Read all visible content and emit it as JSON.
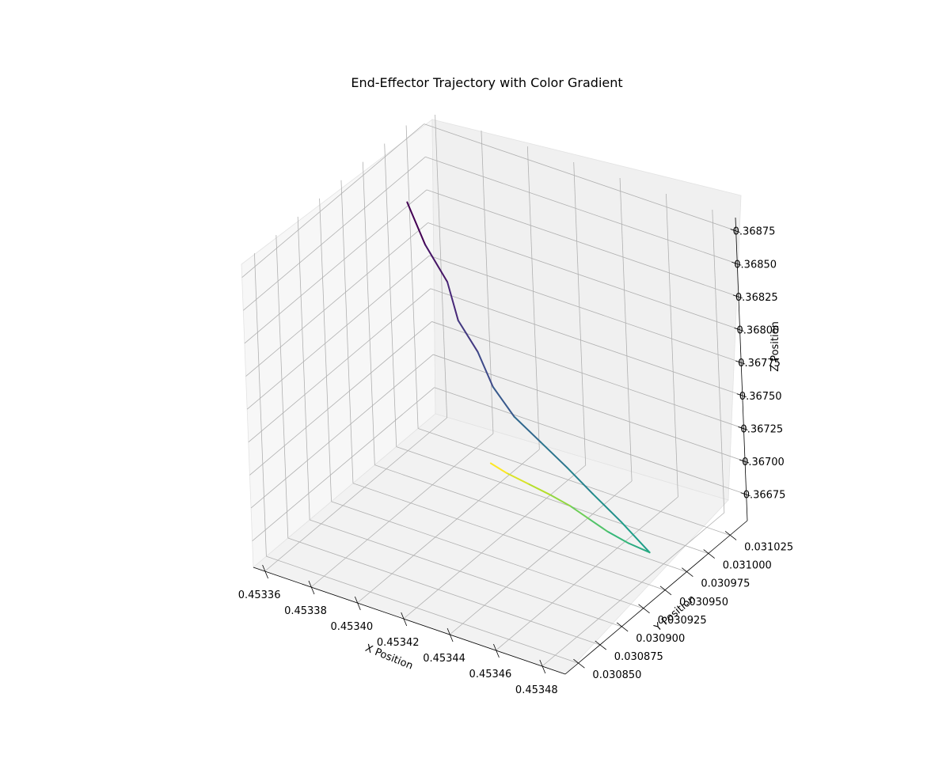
{
  "chart_data": {
    "type": "line",
    "title": "End-Effector Trajectory with Color Gradient",
    "xlabel": "X Position",
    "ylabel": "Y Position",
    "zlabel": "Z Position",
    "xlim": [
      0.453355,
      0.45349
    ],
    "ylim": [
      0.030835,
      0.031045
    ],
    "zlim": [
      0.36655,
      0.36885
    ],
    "x_ticks": [
      "0.45336",
      "0.45338",
      "0.45340",
      "0.45342",
      "0.45344",
      "0.45346",
      "0.45348"
    ],
    "y_ticks": [
      "0.030850",
      "0.030875",
      "0.030900",
      "0.030925",
      "0.030950",
      "0.030975",
      "0.031000",
      "0.031025"
    ],
    "z_ticks": [
      "0.36675",
      "0.36700",
      "0.36725",
      "0.36750",
      "0.36775",
      "0.36800",
      "0.36825",
      "0.36850",
      "0.36875"
    ],
    "grid": true,
    "colormap": "viridis",
    "points": {
      "x": [
        0.45336,
        0.453375,
        0.45339,
        0.4534,
        0.45341,
        0.45342,
        0.45343,
        0.45344,
        0.45345,
        0.45346,
        0.45347,
        0.45348,
        0.45347,
        0.45346,
        0.45345,
        0.45344,
        0.45343,
        0.45342,
        0.45341,
        0.453402
      ],
      "y": [
        0.03101,
        0.03099,
        0.030975,
        0.03096,
        0.030955,
        0.030945,
        0.030942,
        0.030945,
        0.030948,
        0.03095,
        0.030955,
        0.03096,
        0.030962,
        0.030965,
        0.03097,
        0.030975,
        0.030978,
        0.03098,
        0.030982,
        0.030985
      ],
      "z": [
        0.36838,
        0.36826,
        0.36815,
        0.368,
        0.36785,
        0.3677,
        0.36755,
        0.3674,
        0.36725,
        0.3671,
        0.36692,
        0.36672,
        0.36672,
        0.36673,
        0.36674,
        0.36675,
        0.36676,
        0.36677,
        0.36678,
        0.36679
      ]
    }
  }
}
